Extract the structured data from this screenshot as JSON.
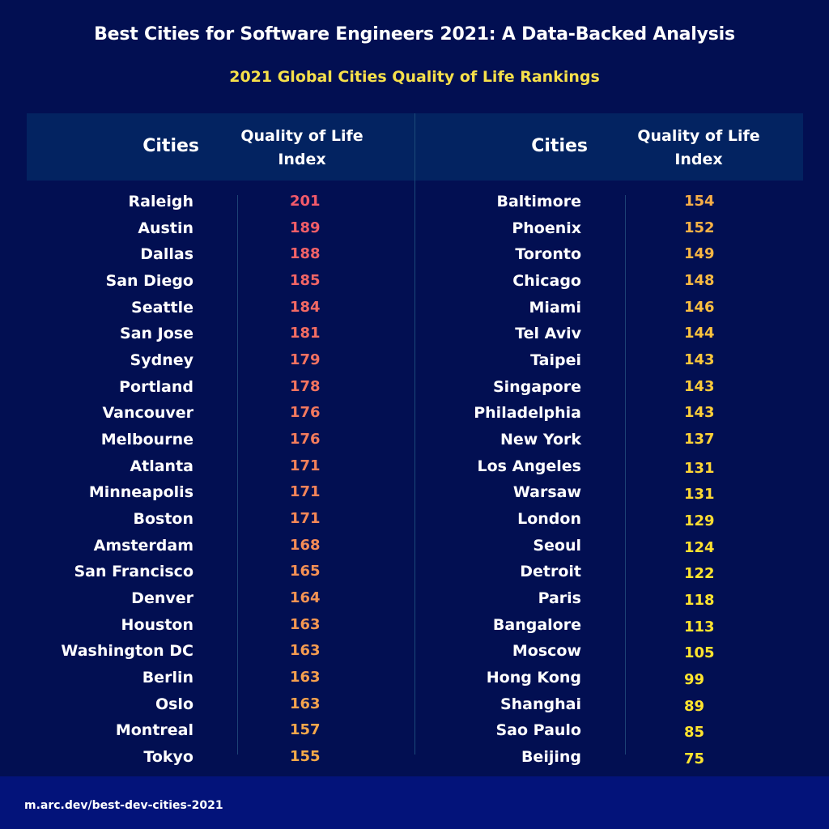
{
  "title": "Best Cities for Software Engineers 2021: A Data-Backed Analysis",
  "subtitle": "2021 Global Cities Quality of Life Rankings",
  "table": {
    "headers": {
      "cities": "Cities",
      "index_line1": "Quality of Life",
      "index_line2": "Index"
    },
    "left": [
      {
        "city": "Raleigh",
        "value": "201"
      },
      {
        "city": "Austin",
        "value": "189"
      },
      {
        "city": "Dallas",
        "value": "188"
      },
      {
        "city": "San Diego",
        "value": "185"
      },
      {
        "city": "Seattle",
        "value": "184"
      },
      {
        "city": "San Jose",
        "value": "181"
      },
      {
        "city": "Sydney",
        "value": "179"
      },
      {
        "city": "Portland",
        "value": "178"
      },
      {
        "city": "Vancouver",
        "value": "176"
      },
      {
        "city": "Melbourne",
        "value": "176"
      },
      {
        "city": "Atlanta",
        "value": "171"
      },
      {
        "city": "Minneapolis",
        "value": "171"
      },
      {
        "city": "Boston",
        "value": "171"
      },
      {
        "city": "Amsterdam",
        "value": "168"
      },
      {
        "city": "San Francisco",
        "value": "165"
      },
      {
        "city": "Denver",
        "value": "164"
      },
      {
        "city": "Houston",
        "value": "163"
      },
      {
        "city": "Washington DC",
        "value": "163"
      },
      {
        "city": "Berlin",
        "value": "163"
      },
      {
        "city": "Oslo",
        "value": "163"
      },
      {
        "city": "Montreal",
        "value": "157"
      },
      {
        "city": "Tokyo",
        "value": "155"
      }
    ],
    "right": [
      {
        "city": "Baltimore",
        "value": "154"
      },
      {
        "city": "Phoenix",
        "value": "152"
      },
      {
        "city": "Toronto",
        "value": "149"
      },
      {
        "city": "Chicago",
        "value": "148"
      },
      {
        "city": "Miami",
        "value": "146"
      },
      {
        "city": "Tel Aviv",
        "value": "144"
      },
      {
        "city": "Taipei",
        "value": "143"
      },
      {
        "city": "Singapore",
        "value": "143"
      },
      {
        "city": "Philadelphia",
        "value": "143"
      },
      {
        "city": "New York",
        "value": "137"
      },
      {
        "city": "Los Angeles",
        "value": "131"
      },
      {
        "city": "Warsaw",
        "value": "131"
      },
      {
        "city": "London",
        "value": "129"
      },
      {
        "city": "Seoul",
        "value": "124"
      },
      {
        "city": "Detroit",
        "value": "122"
      },
      {
        "city": "Paris",
        "value": "118"
      },
      {
        "city": "Bangalore",
        "value": "113"
      },
      {
        "city": "Moscow",
        "value": "105"
      },
      {
        "city": "Hong Kong",
        "value": "99"
      },
      {
        "city": "Shanghai",
        "value": "89"
      },
      {
        "city": "Sao Paulo",
        "value": "85"
      },
      {
        "city": "Beijing",
        "value": "75"
      }
    ]
  },
  "colors": {
    "background": "#020f52",
    "header_band": "#032361",
    "footer": "#03137a",
    "title": "#ffffff",
    "subtitle": "#f6e04a",
    "value_high": "#f25a6a",
    "value_mid": "#f5a94a",
    "value_low": "#ffe42e"
  },
  "footer": {
    "url": "m.arc.dev/best-dev-cities-2021"
  },
  "chart_data": {
    "type": "table",
    "title": "Best Cities for Software Engineers 2021: A Data-Backed Analysis",
    "subtitle": "2021 Global Cities Quality of Life Rankings",
    "columns": [
      "Cities",
      "Quality of Life Index"
    ],
    "categories": [
      "Raleigh",
      "Austin",
      "Dallas",
      "San Diego",
      "Seattle",
      "San Jose",
      "Sydney",
      "Portland",
      "Vancouver",
      "Melbourne",
      "Atlanta",
      "Minneapolis",
      "Boston",
      "Amsterdam",
      "San Francisco",
      "Denver",
      "Houston",
      "Washington DC",
      "Berlin",
      "Oslo",
      "Montreal",
      "Tokyo",
      "Baltimore",
      "Phoenix",
      "Toronto",
      "Chicago",
      "Miami",
      "Tel Aviv",
      "Taipei",
      "Singapore",
      "Philadelphia",
      "New York",
      "Los Angeles",
      "Warsaw",
      "London",
      "Seoul",
      "Detroit",
      "Paris",
      "Bangalore",
      "Moscow",
      "Hong Kong",
      "Shanghai",
      "Sao Paulo",
      "Beijing"
    ],
    "values": [
      201,
      189,
      188,
      185,
      184,
      181,
      179,
      178,
      176,
      176,
      171,
      171,
      171,
      168,
      165,
      164,
      163,
      163,
      163,
      163,
      157,
      155,
      154,
      152,
      149,
      148,
      146,
      144,
      143,
      143,
      143,
      137,
      131,
      131,
      129,
      124,
      122,
      118,
      113,
      105,
      99,
      89,
      85,
      75
    ],
    "color_scale": "value color gradient from coral red (high) through orange to yellow (low)",
    "source_note": "m.arc.dev/best-dev-cities-2021"
  }
}
